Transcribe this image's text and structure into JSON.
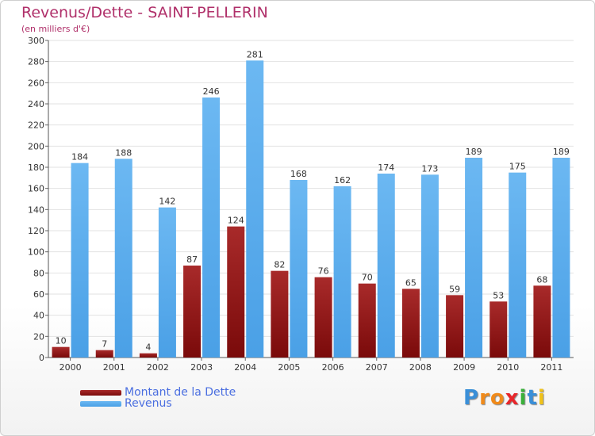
{
  "title": "Revenus/Dette - SAINT-PELLERIN",
  "subtitle": "(en milliers d'€)",
  "colors": {
    "debt": "#7a0a0a",
    "debt_light": "#a82a2a",
    "revenue": "#4aa0e6",
    "revenue_light": "#6cb8f2",
    "title": "#b0306a",
    "legend_text": "#4a6ee0"
  },
  "logo": {
    "text": "Proxiti",
    "letters": [
      {
        "ch": "P",
        "color": "#3a8fd8"
      },
      {
        "ch": "r",
        "color": "#f08a1a"
      },
      {
        "ch": "o",
        "color": "#f08a1a"
      },
      {
        "ch": "x",
        "color": "#e8262a"
      },
      {
        "ch": "i",
        "color": "#3ab03a"
      },
      {
        "ch": "t",
        "color": "#3a8fd8"
      },
      {
        "ch": "i",
        "color": "#f0c21a"
      }
    ]
  },
  "chart_data": {
    "type": "bar",
    "categories": [
      "2000",
      "2001",
      "2002",
      "2003",
      "2004",
      "2005",
      "2006",
      "2007",
      "2008",
      "2009",
      "2010",
      "2011"
    ],
    "series": [
      {
        "name": "Montant de la Dette",
        "values": [
          10,
          7,
          4,
          87,
          124,
          82,
          76,
          70,
          65,
          59,
          53,
          68
        ]
      },
      {
        "name": "Revenus",
        "values": [
          184,
          188,
          142,
          246,
          281,
          168,
          162,
          174,
          173,
          189,
          175,
          189
        ]
      }
    ],
    "ylim": [
      0,
      300
    ],
    "yticks": [
      0,
      20,
      40,
      60,
      80,
      100,
      120,
      140,
      160,
      180,
      200,
      220,
      240,
      260,
      280,
      300
    ],
    "grid": true,
    "legend_position": "bottom-left"
  }
}
